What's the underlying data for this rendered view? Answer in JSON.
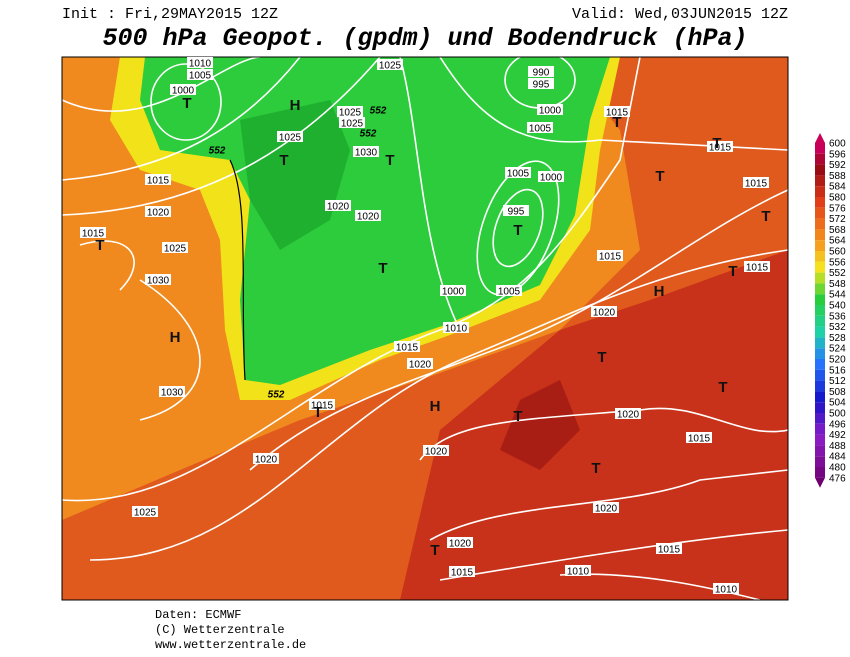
{
  "header": {
    "init": "Init : Fri,29MAY2015 12Z",
    "valid": "Valid: Wed,03JUN2015 12Z",
    "title": "500 hPa Geopot. (gpdm) und Bodendruck (hPa)"
  },
  "colorbar": {
    "ticks": [
      600,
      596,
      592,
      588,
      584,
      580,
      576,
      572,
      568,
      564,
      560,
      556,
      552,
      548,
      544,
      540,
      536,
      532,
      528,
      524,
      520,
      516,
      512,
      508,
      504,
      500,
      496,
      492,
      488,
      484,
      480,
      476
    ]
  },
  "isobar_labels": [
    "1010",
    "1005",
    "1000",
    "1025",
    "990",
    "995",
    "1000",
    "1005",
    "1015",
    "1015",
    "1025",
    "1025",
    "1025",
    "1030",
    "1015",
    "1020",
    "1015",
    "1025",
    "1030",
    "1020",
    "1020",
    "1005",
    "1000",
    "995",
    "1015",
    "1015",
    "1015",
    "1000",
    "1005",
    "1010",
    "1020",
    "1015",
    "1020",
    "1030",
    "1015",
    "1020",
    "1015",
    "1020",
    "1020",
    "1020",
    "1025",
    "1020",
    "1015",
    "1015",
    "1010",
    "1010"
  ],
  "height_labels": [
    "552",
    "552",
    "552",
    "552"
  ],
  "pressure_centers": [
    "T",
    "H",
    "T",
    "T",
    "T",
    "T",
    "T",
    "T",
    "T",
    "T",
    "T",
    "T",
    "H",
    "H",
    "T",
    "T",
    "H",
    "T",
    "T",
    "T",
    "T"
  ],
  "footer": [
    "Daten: ECMWF",
    "(C) Wetterzentrale",
    "www.wetterzentrale.de"
  ]
}
